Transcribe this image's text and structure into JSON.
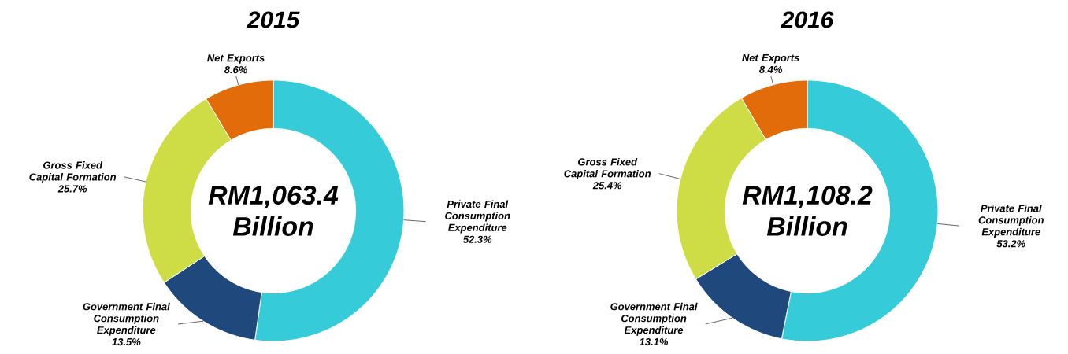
{
  "chart_data": [
    {
      "type": "donut",
      "title": "2015",
      "categories": [
        "Private Final Consumption Expenditure",
        "Government Final Consumption Expenditure",
        "Gross Fixed Capital Formation",
        "Net Exports"
      ],
      "values": [
        52.3,
        13.5,
        25.7,
        8.6
      ],
      "value_labels": [
        "52.3%",
        "13.5%",
        "25.7%",
        "8.6%"
      ],
      "colors": [
        "#36cbd8",
        "#1f497d",
        "#cedc45",
        "#e36c0a"
      ],
      "annotations": [
        "RM1,063.4 Billion"
      ]
    },
    {
      "type": "donut",
      "title": "2016",
      "categories": [
        "Private Final Consumption Expenditure",
        "Government Final Consumption Expenditure",
        "Gross Fixed Capital Formation",
        "Net Exports"
      ],
      "values": [
        53.2,
        13.1,
        25.4,
        8.4
      ],
      "value_labels": [
        "53.2%",
        "13.1%",
        "25.4%",
        "8.4%"
      ],
      "colors": [
        "#36cbd8",
        "#1f497d",
        "#cedc45",
        "#e36c0a"
      ],
      "annotations": [
        "RM1,108.2 Billion"
      ]
    }
  ]
}
